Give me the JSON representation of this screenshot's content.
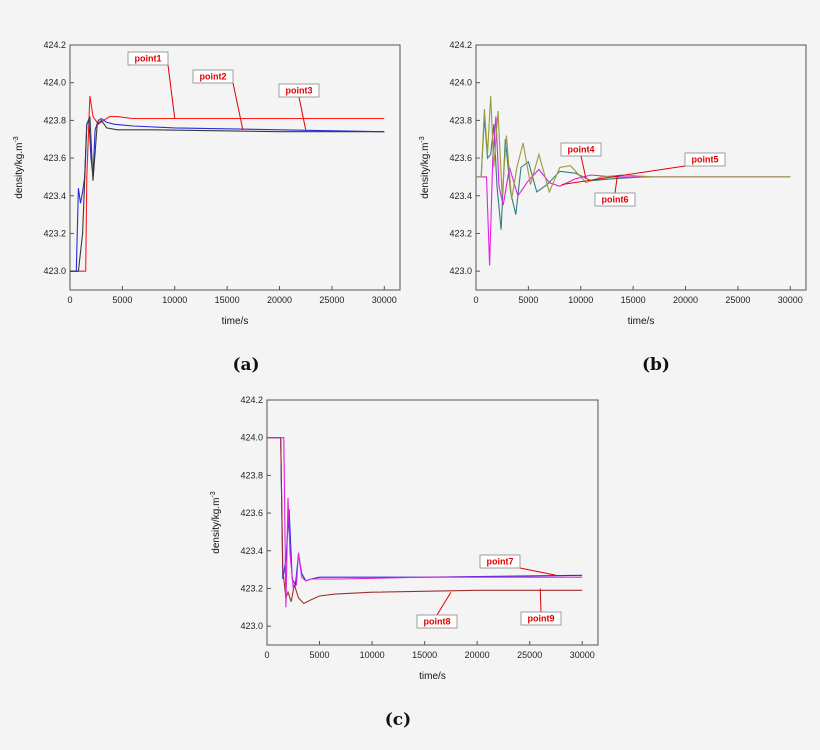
{
  "chart_data": [
    {
      "type": "line",
      "panel_label": "(a)",
      "xlabel": "time/s",
      "ylabel": "density/kg.m",
      "ylabel_sup": "-3",
      "xlim": [
        0,
        31500
      ],
      "ylim": [
        422.9,
        424.2
      ],
      "xticks": [
        0,
        5000,
        10000,
        15000,
        20000,
        25000,
        30000
      ],
      "yticks": [
        423.0,
        423.2,
        423.4,
        423.6,
        423.8,
        424.0,
        424.2
      ],
      "series": [
        {
          "name": "point1",
          "color": "#ff1a1a",
          "x": [
            0,
            1500,
            1600,
            1900,
            2200,
            2700,
            3200,
            3800,
            4500,
            6000,
            10000,
            20000,
            30000
          ],
          "y": [
            423.0,
            423.0,
            423.5,
            423.93,
            423.82,
            423.78,
            423.8,
            423.82,
            423.82,
            423.81,
            423.81,
            423.81,
            423.81
          ]
        },
        {
          "name": "point2",
          "color": "#2c2cd8",
          "x": [
            0,
            600,
            800,
            1000,
            1200,
            1400,
            1600,
            1800,
            2000,
            2200,
            2400,
            2700,
            3000,
            3500,
            4200,
            6000,
            10000,
            20000,
            30000
          ],
          "y": [
            423.0,
            423.0,
            423.44,
            423.36,
            423.42,
            423.5,
            423.78,
            423.8,
            423.6,
            423.5,
            423.75,
            423.8,
            423.81,
            423.79,
            423.78,
            423.77,
            423.76,
            423.75,
            423.74
          ]
        },
        {
          "name": "point3",
          "color": "#3a3a3a",
          "x": [
            0,
            800,
            1200,
            1600,
            1900,
            2200,
            2600,
            3000,
            3500,
            4500,
            8000,
            20000,
            30000
          ],
          "y": [
            423.0,
            423.0,
            423.2,
            423.78,
            423.82,
            423.48,
            423.78,
            423.8,
            423.76,
            423.75,
            423.75,
            423.74,
            423.74
          ]
        }
      ],
      "callouts": [
        {
          "text": "point1",
          "target": [
            10000,
            423.81
          ]
        },
        {
          "text": "point2",
          "target": [
            16500,
            423.75
          ]
        },
        {
          "text": "point3",
          "target": [
            22500,
            423.75
          ]
        }
      ]
    },
    {
      "type": "line",
      "panel_label": "(b)",
      "xlabel": "time/s",
      "ylabel": "density/kg.m",
      "ylabel_sup": "-3",
      "xlim": [
        0,
        31500
      ],
      "ylim": [
        422.9,
        424.2
      ],
      "xticks": [
        0,
        5000,
        10000,
        15000,
        20000,
        25000,
        30000
      ],
      "yticks": [
        423.0,
        423.2,
        423.4,
        423.6,
        423.8,
        424.0,
        424.2
      ],
      "series": [
        {
          "name": "point4",
          "color": "#2f7f7f",
          "x": [
            0,
            500,
            800,
            1100,
            1400,
            1700,
            2000,
            2400,
            2800,
            3300,
            3800,
            4300,
            5000,
            5800,
            6800,
            8000,
            9500,
            11000,
            13000,
            16000,
            20000,
            30000
          ],
          "y": [
            423.5,
            423.5,
            423.82,
            423.6,
            423.62,
            423.78,
            423.45,
            423.22,
            423.7,
            423.42,
            423.3,
            423.55,
            423.58,
            423.42,
            423.46,
            423.53,
            423.52,
            423.48,
            423.49,
            423.5,
            423.5,
            423.5
          ]
        },
        {
          "name": "point5",
          "color": "#e020e0",
          "x": [
            0,
            1000,
            1300,
            1600,
            1900,
            2200,
            2600,
            3200,
            4000,
            5000,
            6000,
            7000,
            8000,
            9500,
            11000,
            13000,
            16000,
            20000,
            30000
          ],
          "y": [
            423.5,
            423.5,
            423.03,
            423.6,
            423.82,
            423.45,
            423.35,
            423.55,
            423.4,
            423.48,
            423.54,
            423.47,
            423.45,
            423.49,
            423.51,
            423.5,
            423.5,
            423.5,
            423.5
          ]
        },
        {
          "name": "point6",
          "color": "#9a9a40",
          "x": [
            0,
            500,
            800,
            1100,
            1400,
            1700,
            2100,
            2500,
            2900,
            3400,
            3900,
            4500,
            5200,
            6000,
            7000,
            8000,
            9000,
            10500,
            12000,
            14000,
            17000,
            20000,
            30000
          ],
          "y": [
            423.5,
            423.5,
            423.86,
            423.62,
            423.93,
            423.55,
            423.85,
            423.4,
            423.72,
            423.38,
            423.55,
            423.68,
            423.46,
            423.62,
            423.42,
            423.55,
            423.56,
            423.47,
            423.5,
            423.51,
            423.5,
            423.5,
            423.5
          ]
        }
      ],
      "callouts": [
        {
          "text": "point4",
          "target": [
            10500,
            423.49
          ]
        },
        {
          "text": "point5",
          "target": [
            8200,
            423.46
          ]
        },
        {
          "text": "point6",
          "target": [
            13500,
            423.51
          ]
        }
      ]
    },
    {
      "type": "line",
      "panel_label": "(c)",
      "xlabel": "time/s",
      "ylabel": "density/kg.m",
      "ylabel_sup": "-3",
      "xlim": [
        0,
        31500
      ],
      "ylim": [
        422.9,
        424.2
      ],
      "xticks": [
        0,
        5000,
        10000,
        15000,
        20000,
        25000,
        30000
      ],
      "yticks": [
        423.0,
        423.2,
        423.4,
        423.6,
        423.8,
        424.0,
        424.2
      ],
      "series": [
        {
          "name": "point7",
          "color": "#2c2cd8",
          "x": [
            0,
            1300,
            1500,
            1800,
            2100,
            2400,
            2700,
            3000,
            3300,
            3700,
            4200,
            5000,
            7000,
            15000,
            30000
          ],
          "y": [
            424.0,
            424.0,
            423.25,
            423.35,
            423.62,
            423.25,
            423.22,
            423.38,
            423.28,
            423.24,
            423.25,
            423.26,
            423.26,
            423.26,
            423.27
          ]
        },
        {
          "name": "point8",
          "color": "#a03030",
          "x": [
            0,
            1300,
            1500,
            1800,
            2000,
            2300,
            2600,
            3000,
            3500,
            4200,
            5000,
            6500,
            10000,
            20000,
            30000
          ],
          "y": [
            424.0,
            424.0,
            423.3,
            423.15,
            423.18,
            423.13,
            423.22,
            423.15,
            423.12,
            423.14,
            423.16,
            423.17,
            423.18,
            423.19,
            423.19
          ]
        },
        {
          "name": "point9",
          "color": "#e020e0",
          "x": [
            0,
            1600,
            1800,
            2000,
            2200,
            2500,
            2800,
            3000,
            3300,
            3700,
            4200,
            5000,
            7000,
            15000,
            30000
          ],
          "y": [
            424.0,
            424.0,
            423.1,
            423.68,
            423.38,
            423.2,
            423.22,
            423.39,
            423.26,
            423.24,
            423.25,
            423.25,
            423.25,
            423.26,
            423.26
          ]
        }
      ],
      "callouts": [
        {
          "text": "point7",
          "target": [
            27500,
            423.27
          ]
        },
        {
          "text": "point8",
          "target": [
            17500,
            423.18
          ]
        },
        {
          "text": "point9",
          "target": [
            26000,
            423.2
          ]
        }
      ]
    }
  ]
}
